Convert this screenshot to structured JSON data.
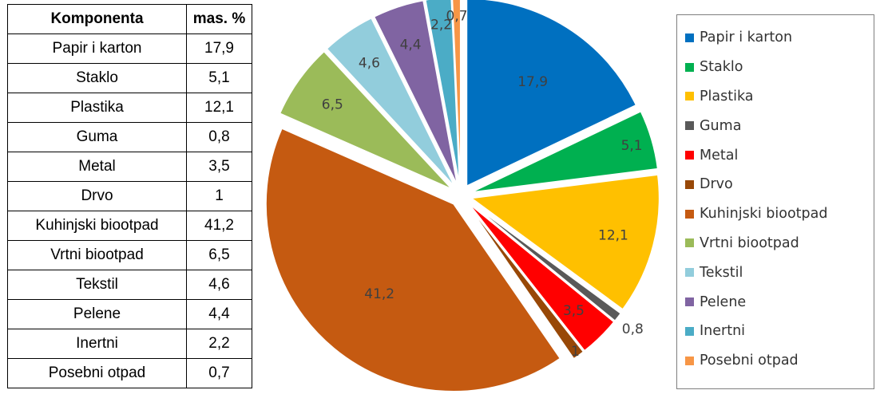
{
  "table": {
    "headers": [
      "Komponenta",
      "mas. %"
    ],
    "rows": [
      [
        "Papir i karton",
        "17,9"
      ],
      [
        "Staklo",
        "5,1"
      ],
      [
        "Plastika",
        "12,1"
      ],
      [
        "Guma",
        "0,8"
      ],
      [
        "Metal",
        "3,5"
      ],
      [
        "Drvo",
        "1"
      ],
      [
        "Kuhinjski biootpad",
        "41,2"
      ],
      [
        "Vrtni biootpad",
        "6,5"
      ],
      [
        "Tekstil",
        "4,6"
      ],
      [
        "Pelene",
        "4,4"
      ],
      [
        "Inertni",
        "2,2"
      ],
      [
        "Posebni otpad",
        "0,7"
      ]
    ]
  },
  "chart_data": {
    "type": "pie",
    "categories": [
      "Papir i karton",
      "Staklo",
      "Plastika",
      "Guma",
      "Metal",
      "Drvo",
      "Kuhinjski biootpad",
      "Vrtni biootpad",
      "Tekstil",
      "Pelene",
      "Inertni",
      "Posebni otpad"
    ],
    "values": [
      17.9,
      5.1,
      12.1,
      0.8,
      3.5,
      1,
      41.2,
      6.5,
      4.6,
      4.4,
      2.2,
      0.7
    ],
    "data_labels": [
      "17,9",
      "5,1",
      "12,1",
      "0,8",
      "3,5",
      "1",
      "41,2",
      "6,5",
      "4,6",
      "4,4",
      "2,2",
      "0,7"
    ],
    "colors": [
      "#0070c0",
      "#00b050",
      "#ffc000",
      "#595959",
      "#ff0000",
      "#984807",
      "#c55a11",
      "#9bbb59",
      "#92cddc",
      "#8064a2",
      "#4bacc6",
      "#f79646"
    ],
    "exploded": true,
    "legend_position": "right"
  }
}
